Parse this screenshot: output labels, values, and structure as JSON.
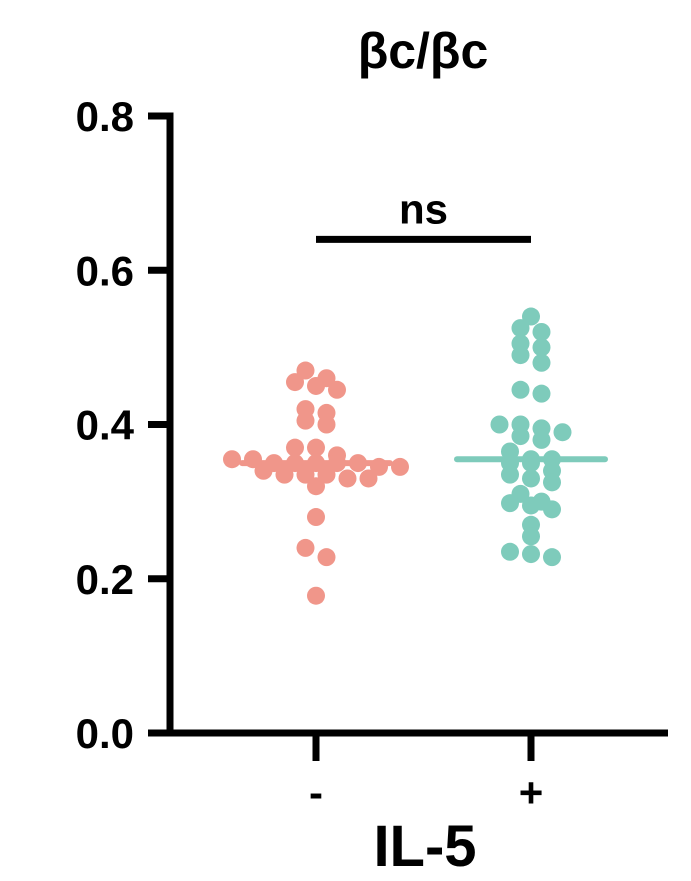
{
  "chart_data": {
    "type": "scatter",
    "title": "βc/βc",
    "xlabel": "IL-5",
    "ylabel": "",
    "categories": [
      "-",
      "+"
    ],
    "ylim": [
      0,
      0.8
    ],
    "yticks": [
      "0.0",
      "0.2",
      "0.4",
      "0.6",
      "0.8"
    ],
    "grid": false,
    "series": [
      {
        "category": "-",
        "color": "#F0968A",
        "median": 0.35,
        "values": [
          0.47,
          0.46,
          0.455,
          0.45,
          0.445,
          0.42,
          0.415,
          0.405,
          0.4,
          0.37,
          0.37,
          0.36,
          0.355,
          0.355,
          0.35,
          0.35,
          0.35,
          0.35,
          0.35,
          0.345,
          0.345,
          0.34,
          0.335,
          0.335,
          0.335,
          0.33,
          0.33,
          0.32,
          0.28,
          0.24,
          0.228,
          0.178
        ]
      },
      {
        "category": "+",
        "color": "#7ECBBB",
        "median": 0.355,
        "values": [
          0.54,
          0.525,
          0.52,
          0.505,
          0.5,
          0.49,
          0.48,
          0.445,
          0.44,
          0.4,
          0.4,
          0.395,
          0.39,
          0.385,
          0.38,
          0.365,
          0.355,
          0.355,
          0.35,
          0.35,
          0.34,
          0.335,
          0.33,
          0.325,
          0.31,
          0.3,
          0.298,
          0.295,
          0.29,
          0.27,
          0.255,
          0.235,
          0.232,
          0.228
        ]
      }
    ],
    "annotations": [
      {
        "text": "ns",
        "type": "significance-bracket",
        "between": [
          "-",
          "+"
        ],
        "y": 0.64
      }
    ]
  }
}
